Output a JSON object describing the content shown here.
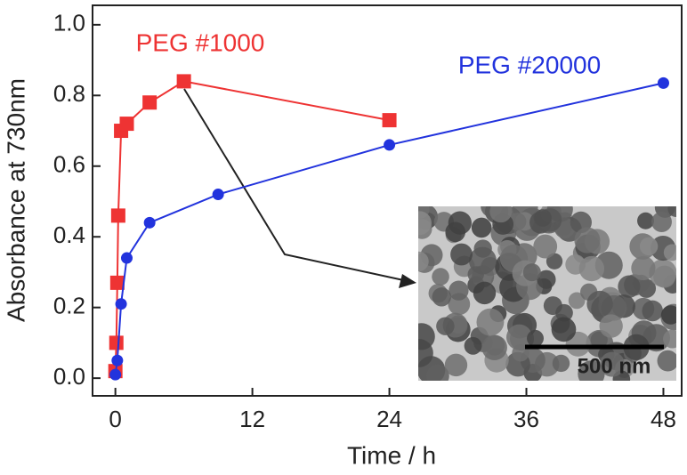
{
  "chart_data": {
    "type": "line",
    "xlabel": "Time / h",
    "ylabel": "Absorbance at 730nm",
    "xlim": [
      -2,
      49.6
    ],
    "ylim": [
      -0.05,
      1.055
    ],
    "xticks": [
      0,
      12,
      24,
      36,
      48
    ],
    "yticks": [
      {
        "value": 0,
        "label": "0.0"
      },
      0.2,
      0.4,
      0.6,
      0.8,
      {
        "value": 1,
        "label": "1.0"
      }
    ],
    "series": [
      {
        "name": "PEG #1000",
        "color": "#ee3333",
        "marker": "square",
        "x": [
          0,
          0.083,
          0.17,
          0.25,
          0.5,
          1,
          3,
          6,
          24
        ],
        "values": [
          0.02,
          0.1,
          0.27,
          0.46,
          0.7,
          0.72,
          0.78,
          0.84,
          0.73
        ]
      },
      {
        "name": "PEG #20000",
        "color": "#2233dd",
        "marker": "circle",
        "x": [
          0,
          0.17,
          0.5,
          1,
          3,
          9,
          24,
          48
        ],
        "values": [
          0.01,
          0.05,
          0.21,
          0.34,
          0.44,
          0.52,
          0.66,
          0.835
        ]
      }
    ],
    "inset": {
      "scale_bar": "500 nm"
    }
  }
}
